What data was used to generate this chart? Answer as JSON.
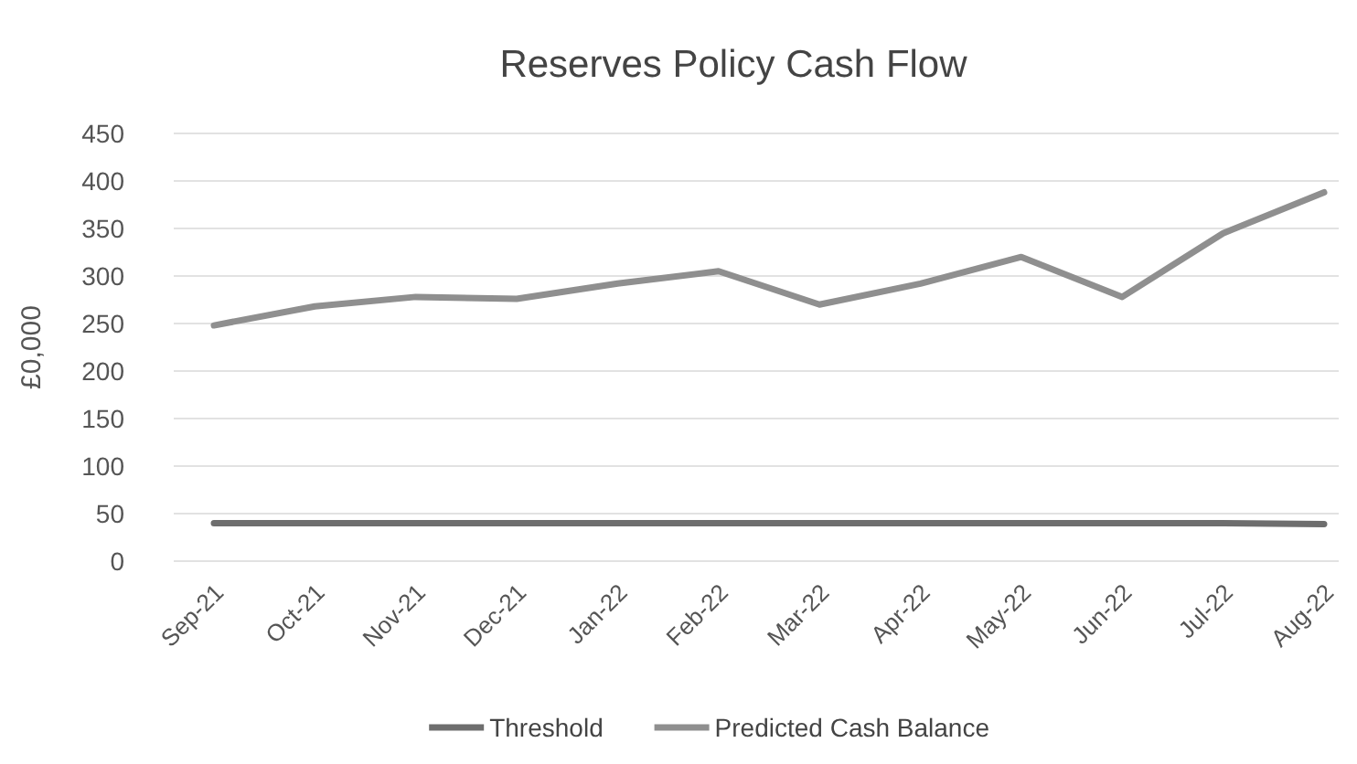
{
  "chart_data": {
    "type": "line",
    "title": "Reserves Policy Cash Flow",
    "ylabel": "£0,000",
    "categories": [
      "Sep-21",
      "Oct-21",
      "Nov-21",
      "Dec-21",
      "Jan-22",
      "Feb-22",
      "Mar-22",
      "Apr-22",
      "May-22",
      "Jun-22",
      "Jul-22",
      "Aug-22"
    ],
    "series": [
      {
        "name": "Threshold",
        "color": "#6e6e6e",
        "values": [
          40,
          40,
          40,
          40,
          40,
          40,
          40,
          40,
          40,
          40,
          40,
          39
        ]
      },
      {
        "name": "Predicted Cash Balance",
        "color": "#8f8f8f",
        "values": [
          248,
          268,
          278,
          276,
          292,
          305,
          270,
          292,
          320,
          278,
          345,
          388
        ]
      }
    ],
    "ylim": [
      0,
      450
    ],
    "yticks": [
      0,
      50,
      100,
      150,
      200,
      250,
      300,
      350,
      400,
      450
    ],
    "grid": "y",
    "legend": "bottom",
    "marker": "none",
    "line_style": "solid"
  }
}
